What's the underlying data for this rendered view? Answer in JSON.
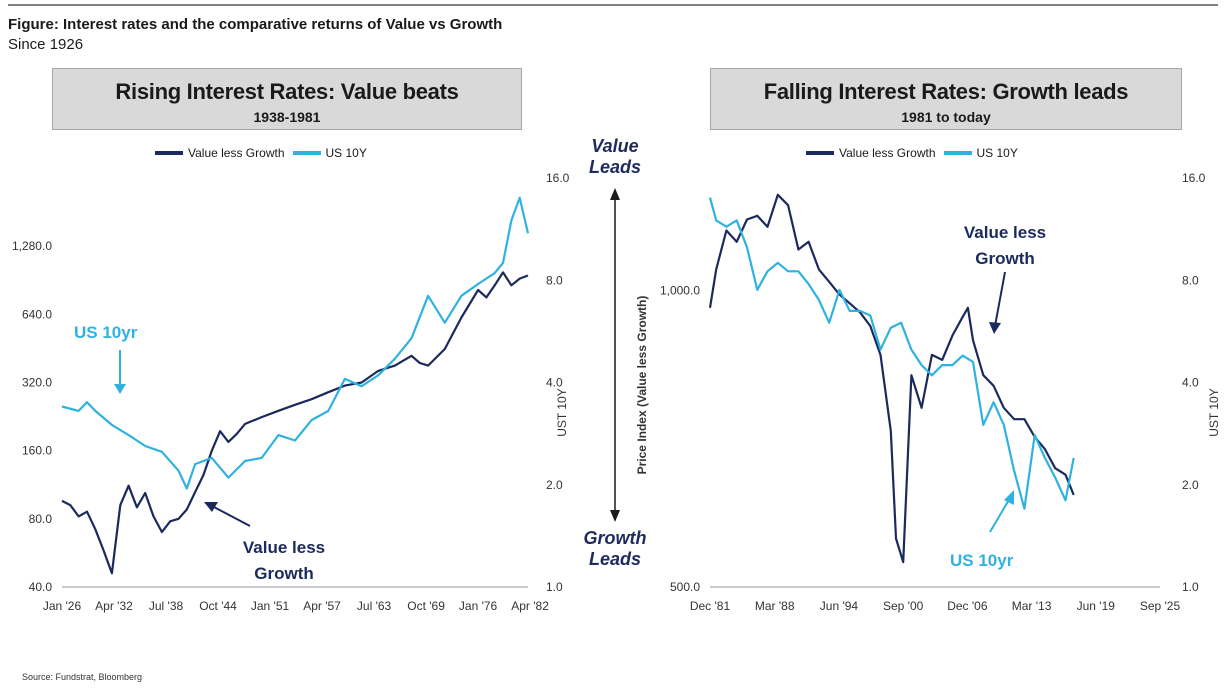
{
  "figure": {
    "title": "Figure: Interest rates and the comparative returns of Value vs Growth",
    "subtitle": "Since 1926",
    "source": "Source: Fundstrat, Bloomberg"
  },
  "middle": {
    "top": "Value",
    "top2": "Leads",
    "bottom": "Growth",
    "bottom2": "Leads"
  },
  "colors": {
    "value_less_growth": "#1b2a5c",
    "us10y": "#2fb2e0",
    "box": "#d9d9d9"
  },
  "chart_data": [
    {
      "type": "line",
      "title": "Rising Interest Rates: Value beats",
      "subtitle": "1938-1981",
      "legend": [
        "Value less Growth",
        "US 10Y"
      ],
      "legend_placement": "top",
      "x_ticks": [
        "Jan '26",
        "Apr '32",
        "Jul '38",
        "Oct '44",
        "Jan '51",
        "Apr '57",
        "Jul '63",
        "Oct '69",
        "Jan '76",
        "Apr '82"
      ],
      "y_left": {
        "scale": "log",
        "ticks": [
          "40.0",
          "80.0",
          "160.0",
          "320.0",
          "640.0",
          "1,280.0"
        ],
        "range": [
          40,
          2560
        ]
      },
      "y_right": {
        "label": "UST 10Y",
        "scale": "log",
        "ticks": [
          "1.0",
          "2.0",
          "4.0",
          "8.0",
          "16.0"
        ],
        "range": [
          1,
          16
        ]
      },
      "annotations": {
        "us": "US 10yr",
        "vlg_1": "Value less",
        "vlg_2": "Growth"
      },
      "series": [
        {
          "name": "Value less Growth",
          "axis": "left",
          "x": [
            1926,
            1927,
            1928,
            1929,
            1930,
            1931,
            1932,
            1933,
            1934,
            1935,
            1936,
            1937,
            1938,
            1939,
            1940,
            1941,
            1942,
            1943,
            1944,
            1945,
            1946,
            1947,
            1948,
            1950,
            1952,
            1954,
            1956,
            1958,
            1960,
            1962,
            1964,
            1966,
            1968,
            1969,
            1970,
            1972,
            1974,
            1976,
            1977,
            1978,
            1979,
            1980,
            1981,
            1982
          ],
          "values": [
            96,
            92,
            82,
            86,
            72,
            58,
            46,
            92,
            112,
            90,
            104,
            82,
            70,
            78,
            80,
            88,
            105,
            125,
            160,
            195,
            175,
            190,
            210,
            225,
            240,
            255,
            270,
            290,
            310,
            320,
            360,
            380,
            420,
            390,
            380,
            450,
            620,
            820,
            760,
            860,
            980,
            860,
            920,
            950
          ]
        },
        {
          "name": "US 10Y",
          "axis": "right",
          "x": [
            1926,
            1928,
            1929,
            1930,
            1932,
            1934,
            1936,
            1938,
            1940,
            1941,
            1942,
            1944,
            1946,
            1948,
            1950,
            1952,
            1954,
            1956,
            1958,
            1960,
            1962,
            1964,
            1966,
            1968,
            1970,
            1972,
            1974,
            1976,
            1978,
            1979,
            1980,
            1981,
            1982
          ],
          "values": [
            3.4,
            3.3,
            3.5,
            3.3,
            3.0,
            2.8,
            2.6,
            2.5,
            2.2,
            1.95,
            2.3,
            2.4,
            2.1,
            2.35,
            2.4,
            2.8,
            2.7,
            3.1,
            3.3,
            4.1,
            3.9,
            4.2,
            4.7,
            5.4,
            7.2,
            6.0,
            7.2,
            7.8,
            8.4,
            9.0,
            12.0,
            14.0,
            11.0
          ]
        }
      ]
    },
    {
      "type": "line",
      "title": "Falling Interest Rates: Growth leads",
      "subtitle": "1981 to today",
      "legend": [
        "Value less Growth",
        "US 10Y"
      ],
      "legend_placement": "top",
      "x_ticks": [
        "Dec '81",
        "Mar '88",
        "Jun '94",
        "Sep '00",
        "Dec '06",
        "Mar '13",
        "Jun '19",
        "Sep '25"
      ],
      "y_left": {
        "label": "Price Index (Value less Growth)",
        "scale": "log",
        "ticks": [
          "500.0",
          "1,000.0"
        ],
        "range": [
          500,
          1300
        ]
      },
      "y_right": {
        "label": "UST 10Y",
        "scale": "log",
        "ticks": [
          "1.0",
          "2.0",
          "4.0",
          "8.0",
          "16.0"
        ],
        "range": [
          1,
          16
        ]
      },
      "annotations": {
        "vlg_1": "Value less",
        "vlg_2": "Growth",
        "us": "US 10yr"
      },
      "series": [
        {
          "name": "Value less Growth",
          "axis": "left",
          "x": [
            1981.9,
            1982.5,
            1983.5,
            1984.5,
            1985.5,
            1986.5,
            1987.5,
            1988.5,
            1989.5,
            1990.5,
            1991.5,
            1992.5,
            1993.5,
            1994.5,
            1995.5,
            1996.5,
            1997.5,
            1998.5,
            1999.5,
            2000.0,
            2000.7,
            2001.5,
            2002.5,
            2003.5,
            2004.5,
            2005.5,
            2006.5,
            2007.0,
            2007.5,
            2008.5,
            2009.5,
            2010.5,
            2011.5,
            2012.5,
            2013.5,
            2014.5,
            2015.5,
            2016.5,
            2017.3
          ],
          "values": [
            960,
            1050,
            1150,
            1120,
            1180,
            1190,
            1160,
            1250,
            1220,
            1100,
            1120,
            1050,
            1020,
            990,
            970,
            950,
            920,
            860,
            720,
            560,
            530,
            820,
            760,
            860,
            850,
            900,
            940,
            960,
            890,
            820,
            800,
            760,
            740,
            740,
            710,
            690,
            660,
            650,
            620
          ]
        },
        {
          "name": "US 10Y",
          "axis": "right",
          "x": [
            1981.9,
            1982.5,
            1983.5,
            1984.5,
            1985.5,
            1986.5,
            1987.5,
            1988.5,
            1989.5,
            1990.5,
            1991.5,
            1992.5,
            1993.5,
            1994.5,
            1995.5,
            1996.5,
            1997.5,
            1998.5,
            1999.5,
            2000.5,
            2001.5,
            2002.5,
            2003.5,
            2004.5,
            2005.5,
            2006.5,
            2007.5,
            2008.5,
            2009.5,
            2010.5,
            2011.5,
            2012.5,
            2013.5,
            2014.5,
            2015.5,
            2016.5,
            2017.3
          ],
          "values": [
            14.0,
            12.0,
            11.5,
            12.0,
            10.0,
            7.5,
            8.5,
            9.0,
            8.5,
            8.5,
            7.8,
            7.0,
            6.0,
            7.5,
            6.5,
            6.5,
            6.3,
            5.0,
            5.8,
            6.0,
            5.0,
            4.5,
            4.2,
            4.5,
            4.5,
            4.8,
            4.6,
            3.0,
            3.5,
            3.0,
            2.2,
            1.7,
            2.8,
            2.4,
            2.1,
            1.8,
            2.4
          ]
        }
      ]
    }
  ]
}
